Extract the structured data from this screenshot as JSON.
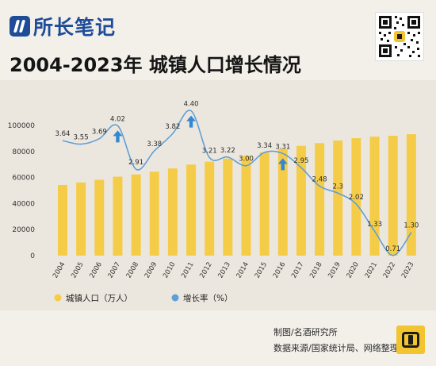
{
  "header": {
    "logo_text": "所长笔记",
    "title": "2004-2023年 城镇人口增长情况"
  },
  "footer": {
    "line1": "制图/名酒研究所",
    "line2": "数据来源/国家统计局、网络整理"
  },
  "colors": {
    "bar": "#f5cc48",
    "line": "#5f9fd6",
    "arrow": "#3488d2",
    "background": "#f3f0ea",
    "plot_band": "#ece7de"
  },
  "chart_data": {
    "type": "bar",
    "categories": [
      "2004",
      "2005",
      "2006",
      "2007",
      "2008",
      "2009",
      "2010",
      "2011",
      "2012",
      "2013",
      "2014",
      "2015",
      "2016",
      "2017",
      "2018",
      "2019",
      "2020",
      "2021",
      "2022",
      "2023"
    ],
    "series": [
      {
        "name": "城镇人口（万人）",
        "type": "bar",
        "axis": "left",
        "values": [
          54283,
          56212,
          58288,
          60633,
          62403,
          64512,
          66978,
          69927,
          72175,
          74502,
          76738,
          79302,
          81924,
          84343,
          86433,
          88426,
          90220,
          91425,
          92071,
          93267
        ]
      },
      {
        "name": "增长率（%）",
        "type": "line",
        "axis": "right",
        "values": [
          3.64,
          3.55,
          3.69,
          4.02,
          2.91,
          3.38,
          3.82,
          4.4,
          3.21,
          3.22,
          3.0,
          3.34,
          3.31,
          2.95,
          2.48,
          2.3,
          2.02,
          1.33,
          0.71,
          1.3
        ],
        "labels": [
          "3.64",
          "3.55",
          "3.69",
          "4.02",
          "2.91",
          "3.38",
          "3.82",
          "4.40",
          "3.21",
          "3.22",
          "3.00",
          "3.34",
          "3.31",
          "2.95",
          "2.48",
          "2.3",
          "2.02",
          "1.33",
          "0.71",
          "1.30"
        ]
      }
    ],
    "yaxis_left": {
      "ticks": [
        0,
        20000,
        40000,
        60000,
        80000,
        100000
      ],
      "tick_labels": [
        "0",
        "20000",
        "40000",
        "60000",
        "80000",
        "100000"
      ],
      "ylim": [
        0,
        100000
      ]
    },
    "yaxis_right_range": [
      0.3,
      5.0
    ],
    "highlight_years": [
      "2007",
      "2011",
      "2016"
    ],
    "legend_position": "bottom",
    "grid": false
  }
}
